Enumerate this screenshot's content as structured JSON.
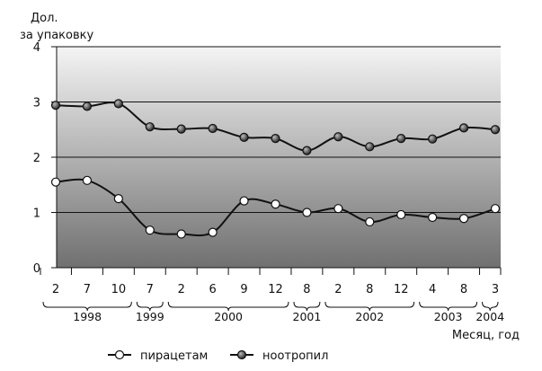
{
  "chart_data": {
    "type": "line",
    "ylabel": "Дол.\nза упаковку",
    "xlabel": "Месяц, год",
    "ylim": [
      0,
      4
    ],
    "yticks": [
      0,
      1,
      2,
      3,
      4
    ],
    "grid": true,
    "legend_placement": "bottom",
    "x": [
      "2",
      "7",
      "10",
      "7",
      "2",
      "6",
      "9",
      "12",
      "8",
      "2",
      "8",
      "12",
      "4",
      "8",
      "3"
    ],
    "years": [
      {
        "label": "1998",
        "from": 0,
        "to": 2
      },
      {
        "label": "1999",
        "from": 3,
        "to": 3
      },
      {
        "label": "2000",
        "from": 4,
        "to": 7
      },
      {
        "label": "2001",
        "from": 8,
        "to": 8
      },
      {
        "label": "2002",
        "from": 9,
        "to": 11
      },
      {
        "label": "2003",
        "from": 12,
        "to": 13
      },
      {
        "label": "2004",
        "from": 14,
        "to": 14
      }
    ],
    "series": [
      {
        "name": "пирацетам",
        "marker": "open-circle",
        "values": [
          1.55,
          1.58,
          1.25,
          0.68,
          0.61,
          0.64,
          1.21,
          1.15,
          1.0,
          1.07,
          0.83,
          0.96,
          0.91,
          0.89,
          1.07
        ]
      },
      {
        "name": "ноотропил",
        "marker": "filled-circle",
        "values": [
          2.94,
          2.92,
          2.97,
          2.55,
          2.51,
          2.52,
          2.36,
          2.34,
          2.12,
          2.37,
          2.19,
          2.34,
          2.33,
          2.53,
          2.5
        ]
      }
    ],
    "colors": {
      "line": "#111111",
      "gradient_top": "#f4f4f4",
      "gradient_bottom": "#707070",
      "open_marker": "#ffffff",
      "filled_marker": "#444444"
    }
  }
}
